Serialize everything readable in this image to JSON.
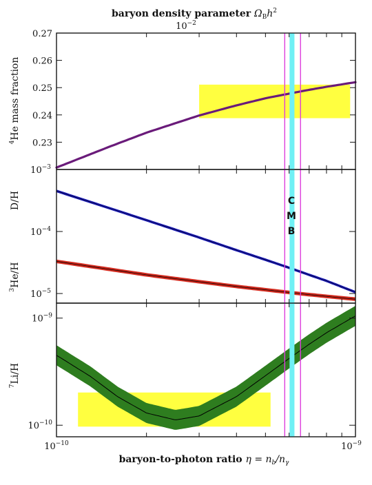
{
  "top_axis": {
    "title_prefix": "baryon density parameter ",
    "title_math": "Ω",
    "title_math_sub": "B",
    "title_math_tail": "h",
    "title_math_sup": "2",
    "tick_base": "10",
    "tick_exp": "−2"
  },
  "bottom_axis": {
    "title_prefix": "baryon-to-photon ratio ",
    "title_math": "η = n",
    "title_math_sub1": "b",
    "title_math_mid": "/n",
    "title_math_sub2": "γ",
    "ticks": [
      {
        "base": "10",
        "exp": "−10",
        "value": 1e-10
      },
      {
        "base": "10",
        "exp": "−9",
        "value": 1e-09
      }
    ]
  },
  "cmb_label": [
    "C",
    "M",
    "B"
  ],
  "colors": {
    "he4": "#6a1b7a",
    "dh": "#1a1ab8",
    "he3": "#d32a1e",
    "li7": "#2e7d1f",
    "observed_box": "#ffff40",
    "cmb_band": "#6ff0f5",
    "cmb_edges": "#dd3ddd"
  },
  "chart_data": [
    {
      "type": "line",
      "panel": "He-4",
      "ylabel_sup": "4",
      "ylabel": "He mass fraction",
      "xscale": "log",
      "xlim": [
        1e-10,
        1e-09
      ],
      "ylim": [
        0.22,
        0.27
      ],
      "yticks": [
        "0.27",
        "0.26",
        "0.25",
        "0.24",
        "0.23"
      ],
      "ytick_values": [
        0.27,
        0.26,
        0.25,
        0.24,
        0.23
      ],
      "x": [
        1e-10,
        1.5e-10,
        2e-10,
        3e-10,
        4e-10,
        5e-10,
        6e-10,
        7e-10,
        8e-10,
        1e-09
      ],
      "series": [
        {
          "values": [
            0.2207,
            0.2283,
            0.2335,
            0.2398,
            0.2435,
            0.2461,
            0.2478,
            0.2492,
            0.2503,
            0.252
          ]
        }
      ],
      "observed_region": {
        "x": [
          3e-10,
          9.6e-10
        ],
        "y": [
          0.2388,
          0.2511
        ]
      }
    },
    {
      "type": "line",
      "panel": "D and He-3",
      "ylabels": [
        {
          "text": "D/H",
          "sup": ""
        },
        {
          "sup": "3",
          "text": "He/H"
        }
      ],
      "xscale": "log",
      "yscale": "log",
      "xlim": [
        1e-10,
        1e-09
      ],
      "ylim": [
        7e-06,
        0.001
      ],
      "yticks": [
        {
          "base": "10",
          "exp": "−3",
          "value": 0.001
        },
        {
          "base": "10",
          "exp": "−4",
          "value": 0.0001
        },
        {
          "base": "10",
          "exp": "−5",
          "value": 1e-05
        }
      ],
      "x": [
        1e-10,
        2e-10,
        3e-10,
        4e-10,
        5e-10,
        6e-10,
        7e-10,
        8e-10,
        1e-09
      ],
      "series": [
        {
          "values": [
            0.00045,
            0.000152,
            8e-05,
            5e-05,
            3.5e-05,
            2.6e-05,
            2e-05,
            1.6e-05,
            1.05e-05
          ]
        },
        {
          "values": [
            3.3e-05,
            2e-05,
            1.55e-05,
            1.3e-05,
            1.15e-05,
            1.04e-05,
            9.6e-06,
            9e-06,
            8.1e-06
          ]
        }
      ]
    },
    {
      "type": "line",
      "panel": "Li-7",
      "ylabel_sup": "7",
      "ylabel": "Li/H",
      "xscale": "log",
      "yscale": "log",
      "xlim": [
        1e-10,
        1e-09
      ],
      "ylim": [
        7.8e-11,
        1.38e-09
      ],
      "yticks": [
        {
          "base": "10",
          "exp": "−9",
          "value": 1e-09
        },
        {
          "base": "10",
          "exp": "−10",
          "value": 1e-10
        }
      ],
      "x": [
        1e-10,
        1.3e-10,
        1.6e-10,
        2e-10,
        2.5e-10,
        3e-10,
        4e-10,
        5e-10,
        6e-10,
        7e-10,
        8e-10,
        1e-09
      ],
      "series": [
        {
          "values": [
            4.5e-10,
            2.85e-10,
            1.85e-10,
            1.3e-10,
            1.12e-10,
            1.22e-10,
            1.85e-10,
            2.9e-10,
            4.2e-10,
            5.7e-10,
            7.3e-10,
            1.05e-09
          ]
        }
      ],
      "observed_region": {
        "x": [
          1.18e-10,
          5.2e-10
        ],
        "y": [
          9.7e-11,
          2.02e-10
        ]
      }
    }
  ],
  "cmb": {
    "x_range": [
      6.02e-10,
      6.25e-10
    ],
    "edges": [
      5.8e-10,
      6.55e-10
    ]
  }
}
